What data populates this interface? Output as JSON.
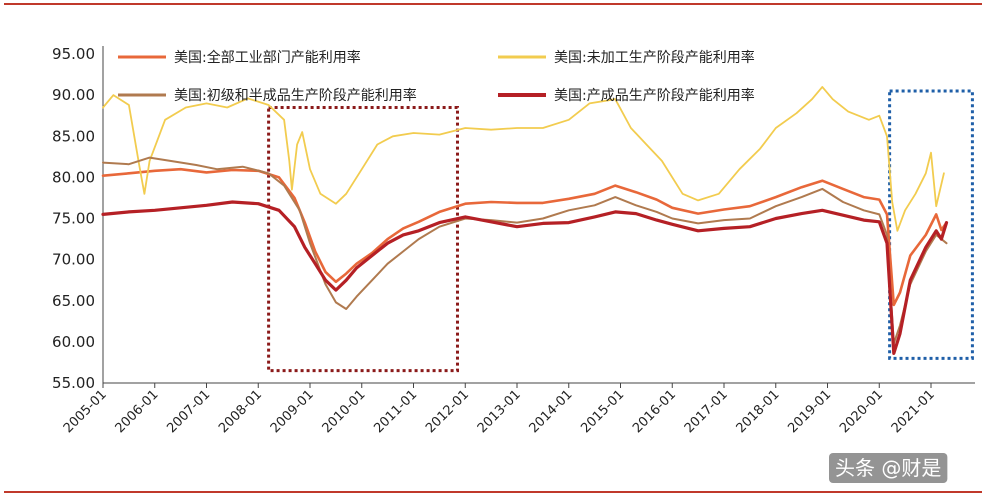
{
  "chart_data": {
    "type": "line",
    "title": "",
    "xlabel": "",
    "ylabel": "",
    "ylim": [
      55,
      95
    ],
    "y_ticks": [
      "95.00",
      "90.00",
      "85.00",
      "80.00",
      "75.00",
      "70.00",
      "65.00",
      "60.00",
      "55.00"
    ],
    "x_ticks": [
      "2005-01",
      "2006-01",
      "2007-01",
      "2008-01",
      "2009-01",
      "2010-01",
      "2011-01",
      "2012-01",
      "2013-01",
      "2014-01",
      "2015-01",
      "2016-01",
      "2017-01",
      "2018-01",
      "2019-01",
      "2020-01",
      "2021-01"
    ],
    "grid": false,
    "legend_position": "top",
    "series": [
      {
        "name": "美国:全部工业部门产能利用率",
        "color": "#e8683a",
        "points": [
          [
            2005.0,
            80.2
          ],
          [
            2005.5,
            80.5
          ],
          [
            2006.0,
            80.8
          ],
          [
            2006.5,
            81.0
          ],
          [
            2007.0,
            80.6
          ],
          [
            2007.5,
            80.9
          ],
          [
            2008.0,
            80.8
          ],
          [
            2008.4,
            80.0
          ],
          [
            2008.7,
            77.5
          ],
          [
            2008.9,
            74.5
          ],
          [
            2009.1,
            71.0
          ],
          [
            2009.3,
            68.5
          ],
          [
            2009.5,
            67.3
          ],
          [
            2009.7,
            68.3
          ],
          [
            2009.9,
            69.5
          ],
          [
            2010.2,
            70.8
          ],
          [
            2010.5,
            72.5
          ],
          [
            2010.8,
            73.8
          ],
          [
            2011.1,
            74.6
          ],
          [
            2011.5,
            75.8
          ],
          [
            2012.0,
            76.8
          ],
          [
            2012.5,
            77.0
          ],
          [
            2013.0,
            76.9
          ],
          [
            2013.5,
            76.9
          ],
          [
            2014.0,
            77.4
          ],
          [
            2014.5,
            78.0
          ],
          [
            2014.9,
            79.0
          ],
          [
            2015.3,
            78.2
          ],
          [
            2015.7,
            77.3
          ],
          [
            2016.0,
            76.3
          ],
          [
            2016.5,
            75.6
          ],
          [
            2017.0,
            76.1
          ],
          [
            2017.5,
            76.5
          ],
          [
            2018.0,
            77.6
          ],
          [
            2018.5,
            78.8
          ],
          [
            2018.9,
            79.6
          ],
          [
            2019.3,
            78.6
          ],
          [
            2019.7,
            77.6
          ],
          [
            2020.0,
            77.3
          ],
          [
            2020.15,
            75.5
          ],
          [
            2020.28,
            64.5
          ],
          [
            2020.4,
            66.0
          ],
          [
            2020.6,
            70.5
          ],
          [
            2020.9,
            73.0
          ],
          [
            2021.1,
            75.5
          ],
          [
            2021.2,
            73.6
          ],
          [
            2021.3,
            74.5
          ]
        ]
      },
      {
        "name": "美国:未加工生产阶段产能利用率",
        "color": "#f2cc4f",
        "points": [
          [
            2005.0,
            88.5
          ],
          [
            2005.2,
            90.0
          ],
          [
            2005.5,
            88.8
          ],
          [
            2005.7,
            81.5
          ],
          [
            2005.8,
            78.0
          ],
          [
            2005.9,
            82.0
          ],
          [
            2006.2,
            87.0
          ],
          [
            2006.6,
            88.5
          ],
          [
            2007.0,
            89.0
          ],
          [
            2007.4,
            88.5
          ],
          [
            2007.8,
            89.6
          ],
          [
            2008.2,
            88.8
          ],
          [
            2008.5,
            87.0
          ],
          [
            2008.6,
            82.0
          ],
          [
            2008.65,
            78.5
          ],
          [
            2008.75,
            84.0
          ],
          [
            2008.85,
            85.5
          ],
          [
            2009.0,
            81.0
          ],
          [
            2009.2,
            78.0
          ],
          [
            2009.5,
            76.8
          ],
          [
            2009.7,
            78.0
          ],
          [
            2010.0,
            81.0
          ],
          [
            2010.3,
            84.0
          ],
          [
            2010.6,
            85.0
          ],
          [
            2011.0,
            85.4
          ],
          [
            2011.5,
            85.2
          ],
          [
            2012.0,
            86.0
          ],
          [
            2012.5,
            85.8
          ],
          [
            2013.0,
            86.0
          ],
          [
            2013.5,
            86.0
          ],
          [
            2014.0,
            87.0
          ],
          [
            2014.4,
            89.0
          ],
          [
            2014.9,
            89.5
          ],
          [
            2015.2,
            86.0
          ],
          [
            2015.5,
            84.0
          ],
          [
            2015.8,
            82.0
          ],
          [
            2016.2,
            78.0
          ],
          [
            2016.5,
            77.2
          ],
          [
            2016.9,
            78.0
          ],
          [
            2017.3,
            81.0
          ],
          [
            2017.7,
            83.5
          ],
          [
            2018.0,
            86.0
          ],
          [
            2018.4,
            87.8
          ],
          [
            2018.7,
            89.5
          ],
          [
            2018.9,
            91.0
          ],
          [
            2019.1,
            89.5
          ],
          [
            2019.4,
            88.0
          ],
          [
            2019.8,
            87.0
          ],
          [
            2020.0,
            87.5
          ],
          [
            2020.15,
            85.0
          ],
          [
            2020.25,
            77.0
          ],
          [
            2020.35,
            73.5
          ],
          [
            2020.5,
            76.0
          ],
          [
            2020.7,
            78.0
          ],
          [
            2020.9,
            80.5
          ],
          [
            2021.0,
            83.0
          ],
          [
            2021.1,
            76.5
          ],
          [
            2021.25,
            80.5
          ]
        ]
      },
      {
        "name": "美国:初级和半成品生产阶段产能利用率",
        "color": "#b07a4f",
        "points": [
          [
            2005.0,
            81.8
          ],
          [
            2005.5,
            81.6
          ],
          [
            2005.9,
            82.4
          ],
          [
            2006.3,
            82.0
          ],
          [
            2006.8,
            81.5
          ],
          [
            2007.2,
            81.0
          ],
          [
            2007.7,
            81.3
          ],
          [
            2008.2,
            80.5
          ],
          [
            2008.5,
            79.0
          ],
          [
            2008.8,
            76.0
          ],
          [
            2009.0,
            72.0
          ],
          [
            2009.3,
            67.0
          ],
          [
            2009.5,
            64.8
          ],
          [
            2009.7,
            64.0
          ],
          [
            2009.9,
            65.5
          ],
          [
            2010.2,
            67.5
          ],
          [
            2010.5,
            69.5
          ],
          [
            2010.8,
            71.0
          ],
          [
            2011.1,
            72.5
          ],
          [
            2011.5,
            74.0
          ],
          [
            2012.0,
            75.0
          ],
          [
            2012.5,
            74.8
          ],
          [
            2013.0,
            74.5
          ],
          [
            2013.5,
            75.0
          ],
          [
            2014.0,
            76.0
          ],
          [
            2014.5,
            76.6
          ],
          [
            2014.9,
            77.6
          ],
          [
            2015.3,
            76.6
          ],
          [
            2015.7,
            75.8
          ],
          [
            2016.0,
            75.0
          ],
          [
            2016.5,
            74.4
          ],
          [
            2017.0,
            74.8
          ],
          [
            2017.5,
            75.0
          ],
          [
            2018.0,
            76.5
          ],
          [
            2018.5,
            77.6
          ],
          [
            2018.9,
            78.6
          ],
          [
            2019.3,
            77.0
          ],
          [
            2019.7,
            76.0
          ],
          [
            2020.0,
            75.5
          ],
          [
            2020.15,
            73.0
          ],
          [
            2020.28,
            59.8
          ],
          [
            2020.4,
            62.0
          ],
          [
            2020.6,
            67.0
          ],
          [
            2020.9,
            71.0
          ],
          [
            2021.1,
            73.0
          ],
          [
            2021.3,
            72.0
          ]
        ]
      },
      {
        "name": "美国:产成品生产阶段产能利用率",
        "color": "#b52025",
        "points": [
          [
            2005.0,
            75.5
          ],
          [
            2005.5,
            75.8
          ],
          [
            2006.0,
            76.0
          ],
          [
            2006.5,
            76.3
          ],
          [
            2007.0,
            76.6
          ],
          [
            2007.5,
            77.0
          ],
          [
            2008.0,
            76.8
          ],
          [
            2008.4,
            76.0
          ],
          [
            2008.7,
            74.0
          ],
          [
            2008.9,
            71.5
          ],
          [
            2009.1,
            69.5
          ],
          [
            2009.3,
            67.5
          ],
          [
            2009.5,
            66.3
          ],
          [
            2009.7,
            67.5
          ],
          [
            2009.9,
            69.0
          ],
          [
            2010.2,
            70.5
          ],
          [
            2010.5,
            72.0
          ],
          [
            2010.8,
            73.0
          ],
          [
            2011.1,
            73.5
          ],
          [
            2011.5,
            74.5
          ],
          [
            2012.0,
            75.2
          ],
          [
            2012.5,
            74.6
          ],
          [
            2013.0,
            74.0
          ],
          [
            2013.5,
            74.4
          ],
          [
            2014.0,
            74.5
          ],
          [
            2014.5,
            75.2
          ],
          [
            2014.9,
            75.8
          ],
          [
            2015.3,
            75.6
          ],
          [
            2015.7,
            74.8
          ],
          [
            2016.0,
            74.3
          ],
          [
            2016.5,
            73.5
          ],
          [
            2017.0,
            73.8
          ],
          [
            2017.5,
            74.0
          ],
          [
            2018.0,
            75.0
          ],
          [
            2018.5,
            75.6
          ],
          [
            2018.9,
            76.0
          ],
          [
            2019.3,
            75.4
          ],
          [
            2019.7,
            74.8
          ],
          [
            2020.0,
            74.6
          ],
          [
            2020.15,
            72.0
          ],
          [
            2020.28,
            58.6
          ],
          [
            2020.4,
            61.0
          ],
          [
            2020.6,
            67.5
          ],
          [
            2020.9,
            71.5
          ],
          [
            2021.1,
            73.5
          ],
          [
            2021.2,
            72.5
          ],
          [
            2021.3,
            74.5
          ]
        ]
      }
    ],
    "highlight_boxes": [
      {
        "style": "dotted",
        "color": "#8b1a1a",
        "x_range": [
          2008.2,
          2011.85
        ],
        "y_range": [
          56.5,
          88.5
        ]
      },
      {
        "style": "dotted",
        "color": "#1f5fa8",
        "x_range": [
          2020.2,
          2021.8
        ],
        "y_range": [
          58.0,
          90.5
        ]
      }
    ]
  },
  "watermark": "头条 @财是"
}
